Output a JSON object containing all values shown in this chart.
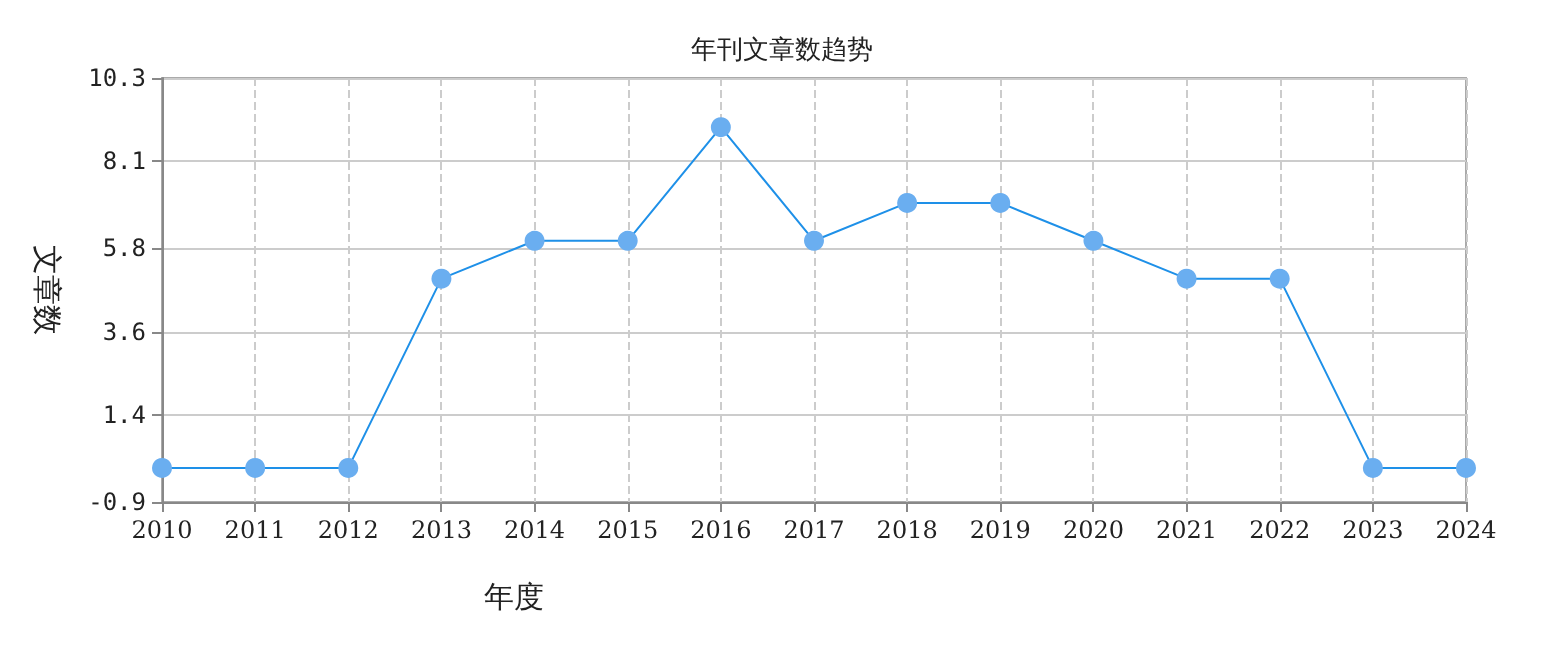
{
  "chart_data": {
    "type": "line",
    "title": "年刊文章数趋势",
    "xlabel": "年度",
    "ylabel": "文章数",
    "categories": [
      "2010",
      "2011",
      "2012",
      "2013",
      "2014",
      "2015",
      "2016",
      "2017",
      "2018",
      "2019",
      "2020",
      "2021",
      "2022",
      "2023",
      "2024"
    ],
    "series": [
      {
        "color": "#1e90e8",
        "values": [
          0,
          0,
          0,
          5,
          6,
          6,
          9,
          6,
          7,
          7,
          6,
          5,
          5,
          0,
          0
        ]
      }
    ],
    "ylim": [
      -0.9,
      10.3
    ],
    "yticks": [
      -0.9,
      1.4,
      3.6,
      5.8,
      8.1,
      10.3
    ],
    "grid": true,
    "marker": "circle",
    "line_style": "solid"
  }
}
